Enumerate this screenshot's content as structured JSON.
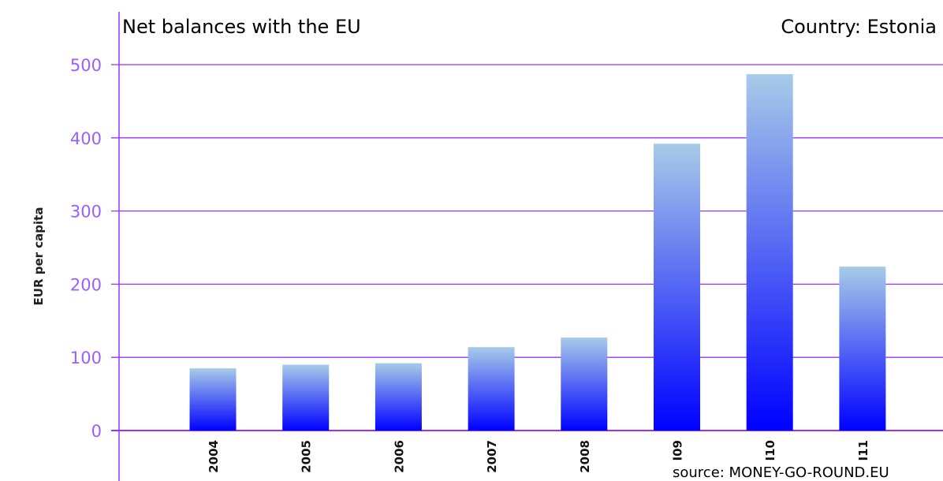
{
  "chart_data": {
    "type": "bar",
    "title": "Net balances with the EU",
    "subtitle": "Country: Estonia",
    "ylabel": "EUR per capita",
    "xlabel": "",
    "categories": [
      "2004",
      "2005",
      "2006",
      "2007",
      "2008",
      "2009",
      "2010",
      "2011"
    ],
    "tick_labels_shown": [
      "2004",
      "2005",
      "2006",
      "2007",
      "2008",
      "I09",
      "I10",
      "I11"
    ],
    "values": [
      85,
      90,
      92,
      114,
      127,
      392,
      487,
      224
    ],
    "ylim": [
      0,
      500
    ],
    "yticks": [
      "0",
      "100",
      "200",
      "300",
      "400",
      "500"
    ],
    "grid": true,
    "source": "source: MONEY-GO-ROUND.EU",
    "colors": {
      "grid": "#9b30ff",
      "tick_label": "#9b5fff",
      "bar_top": "#a7cbe8",
      "bar_bottom": "#0000ff"
    }
  }
}
